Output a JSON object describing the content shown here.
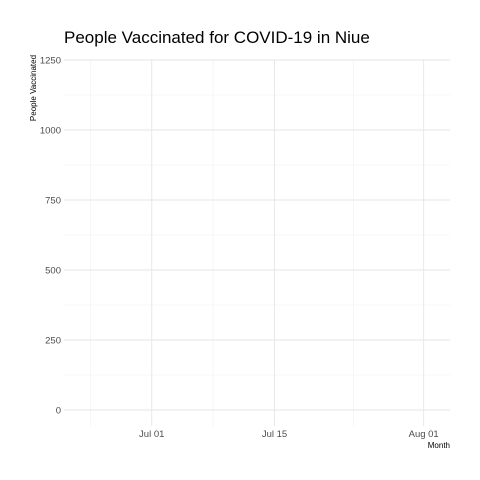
{
  "chart_data": {
    "type": "line",
    "title": "People Vaccinated for COVID-19 in Niue",
    "xlabel": "Month",
    "ylabel": "People Vaccinated",
    "x_tick_labels": [
      "Jul 01",
      "Jul 15",
      "Aug 01"
    ],
    "y_tick_labels": [
      "0",
      "250",
      "500",
      "750",
      "1000",
      "1250"
    ],
    "ylim": [
      0,
      1250
    ],
    "xlim": [
      "2021-06-21",
      "2021-08-04"
    ],
    "grid": true,
    "legend": "none",
    "series": []
  }
}
